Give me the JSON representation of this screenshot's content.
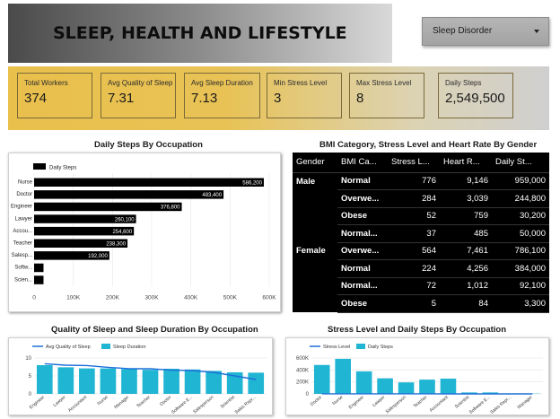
{
  "header": {
    "title": "SLEEP, HEALTH AND LIFESTYLE"
  },
  "filter": {
    "label": "Sleep Disorder",
    "icon": "caret-down-icon"
  },
  "kpis": [
    {
      "label": "Total Workers",
      "value": "374"
    },
    {
      "label": "Avg Quality of Sleep",
      "value": "7.31"
    },
    {
      "label": "Avg Sleep Duration",
      "value": "7.13"
    },
    {
      "label": "Min Stress Level",
      "value": "3"
    },
    {
      "label": "Max Stress Level",
      "value": "8"
    },
    {
      "label": "Daily Steps",
      "value": "2,549,500"
    }
  ],
  "bar_chart": {
    "title": "Daily Steps By Occupation",
    "chart_data": {
      "type": "bar",
      "orientation": "horizontal",
      "legend": "Daily Steps",
      "categories": [
        "Nurse",
        "Doctor",
        "Engineer",
        "Lawyer",
        "Accou...",
        "Teacher",
        "Salesp...",
        "Softw...",
        "Scien..."
      ],
      "values": [
        586200,
        483400,
        376800,
        260100,
        254600,
        238300,
        192000,
        24000,
        24000
      ],
      "value_labels": [
        "586,200",
        "483,400",
        "376,800",
        "260,100",
        "254,600",
        "238,300",
        "192,000",
        "",
        ""
      ],
      "x_ticks": [
        "0",
        "100K",
        "200K",
        "300K",
        "400K",
        "500K",
        "600K"
      ],
      "xlim": [
        0,
        600000
      ]
    }
  },
  "table": {
    "title": "BMI Category, Stress Level and Heart Rate By Gender",
    "columns": [
      "Gender",
      "BMI Ca...",
      "Stress L...",
      "Heart R...",
      "Daily St..."
    ],
    "groups": [
      {
        "gender": "Male",
        "rows": [
          [
            "Normal",
            "776",
            "9,146",
            "959,000"
          ],
          [
            "Overwe...",
            "284",
            "3,039",
            "244,800"
          ],
          [
            "Obese",
            "52",
            "759",
            "30,200"
          ],
          [
            "Normal...",
            "37",
            "485",
            "50,000"
          ]
        ]
      },
      {
        "gender": "Female",
        "rows": [
          [
            "Overwe...",
            "564",
            "7,461",
            "786,100"
          ],
          [
            "Normal",
            "224",
            "4,256",
            "384,000"
          ],
          [
            "Normal...",
            "72",
            "1,012",
            "92,100"
          ],
          [
            "Obese",
            "5",
            "84",
            "3,300"
          ]
        ]
      }
    ]
  },
  "sleep_chart": {
    "title": "Quality of Sleep and Sleep Duration By Occupation",
    "chart_data": {
      "type": "bar",
      "legend": [
        "Avg Quality of Sleep",
        "Sleep Duration"
      ],
      "categories": [
        "Engineer",
        "Lawyer",
        "Accountant",
        "Nurse",
        "Manager",
        "Teacher",
        "Doctor",
        "Software E...",
        "Salesperson",
        "Scientist",
        "Sales Repr..."
      ],
      "series": [
        {
          "name": "Avg Quality of Sleep",
          "type": "line",
          "values": [
            8.4,
            8.0,
            7.9,
            7.4,
            7.0,
            7.0,
            6.6,
            6.5,
            6.0,
            5.0,
            4.0
          ]
        },
        {
          "name": "Sleep Duration",
          "type": "bar",
          "values": [
            8.0,
            7.4,
            7.1,
            7.1,
            6.9,
            6.7,
            7.0,
            6.8,
            6.4,
            6.0,
            5.9
          ]
        }
      ],
      "y_ticks": [
        "0",
        "5",
        "10"
      ],
      "ylim": [
        0,
        10
      ],
      "colors": {
        "bar": "#1fb5d3",
        "line": "#1e6fd9"
      }
    }
  },
  "stress_chart": {
    "title": "Stress Level and Daily Steps By Occupation",
    "chart_data": {
      "type": "bar",
      "legend": [
        "Stress Level",
        "Daily Steps"
      ],
      "categories": [
        "Doctor",
        "Nurse",
        "Engineer",
        "Lawyer",
        "Salesperson",
        "Teacher",
        "Accountant",
        "Scientist",
        "Software E...",
        "Sales Repr...",
        "Manager"
      ],
      "series": [
        {
          "name": "Stress Level",
          "type": "line",
          "values": [
            500,
            380,
            210,
            260,
            200,
            210,
            180,
            30,
            30,
            15,
            5
          ]
        },
        {
          "name": "Daily Steps",
          "type": "bar",
          "values": [
            483400,
            586200,
            376800,
            260100,
            192000,
            238300,
            254600,
            24000,
            24000,
            8000,
            5000
          ]
        }
      ],
      "y_ticks": [
        "0",
        "200K",
        "400K",
        "600K"
      ],
      "ylim": [
        0,
        600000
      ],
      "colors": {
        "bar": "#1fb5d3",
        "line": "#1e6fd9"
      }
    }
  }
}
